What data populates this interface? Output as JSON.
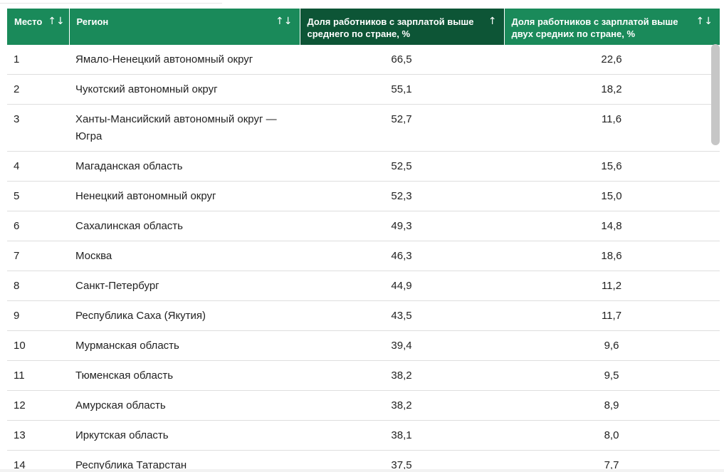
{
  "table": {
    "columns": [
      {
        "label": "Место",
        "sort_icon": "↑↓",
        "icon_name": "sort-both-icon"
      },
      {
        "label": "Регион",
        "sort_icon": "↑↓",
        "icon_name": "sort-both-icon"
      },
      {
        "label": "Доля работников с зарплатой выше среднего по стране, %",
        "sort_icon": "↑",
        "icon_name": "sort-ascending-icon"
      },
      {
        "label": "Доля работников с зарплатой выше двух средних по стране, %",
        "sort_icon": "↑↓",
        "icon_name": "sort-both-icon"
      }
    ],
    "rows": [
      {
        "place": "1",
        "region": "Ямало-Ненецкий автономный округ",
        "above_avg": "66,5",
        "above_double": "22,6"
      },
      {
        "place": "2",
        "region": "Чукотский автономный округ",
        "above_avg": "55,1",
        "above_double": "18,2"
      },
      {
        "place": "3",
        "region": "Ханты-Мансийский автономный округ — Югра",
        "above_avg": "52,7",
        "above_double": "11,6"
      },
      {
        "place": "4",
        "region": "Магаданская область",
        "above_avg": "52,5",
        "above_double": "15,6"
      },
      {
        "place": "5",
        "region": "Ненецкий автономный округ",
        "above_avg": "52,3",
        "above_double": "15,0"
      },
      {
        "place": "6",
        "region": "Сахалинская область",
        "above_avg": "49,3",
        "above_double": "14,8"
      },
      {
        "place": "7",
        "region": "Москва",
        "above_avg": "46,3",
        "above_double": "18,6"
      },
      {
        "place": "8",
        "region": "Санкт-Петербург",
        "above_avg": "44,9",
        "above_double": "11,2"
      },
      {
        "place": "9",
        "region": "Республика Саха (Якутия)",
        "above_avg": "43,5",
        "above_double": "11,7"
      },
      {
        "place": "10",
        "region": "Мурманская область",
        "above_avg": "39,4",
        "above_double": "9,6"
      },
      {
        "place": "11",
        "region": "Тюменская область",
        "above_avg": "38,2",
        "above_double": "9,5"
      },
      {
        "place": "12",
        "region": "Амурская область",
        "above_avg": "38,2",
        "above_double": "8,9"
      },
      {
        "place": "13",
        "region": "Иркутская область",
        "above_avg": "38,1",
        "above_double": "8,0"
      },
      {
        "place": "14",
        "region": "Республика Татарстан",
        "above_avg": "37,5",
        "above_double": "7,7"
      }
    ]
  },
  "colors": {
    "header_bg": "#1a8a5a",
    "header_active_bg": "#0d5536",
    "header_text": "#ffffff",
    "row_border": "#dedede",
    "body_text": "#222222"
  }
}
